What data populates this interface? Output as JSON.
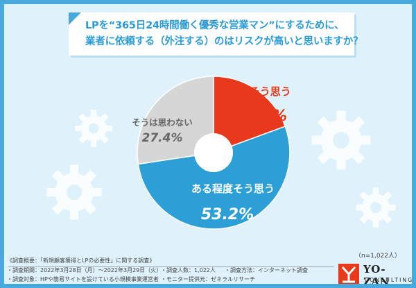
{
  "title": {
    "line1": "LPを“365日24時間働く優秀な営業マン”にするために、",
    "line2": "業者に依頼する（外注する）のはリスクが高いと思いますか？"
  },
  "chart_data": {
    "type": "pie",
    "donut": true,
    "slices": [
      {
        "label": "とてもそう思う",
        "value": 19.4,
        "display": "19.4%",
        "color": "#e8391d"
      },
      {
        "label": "ある程度そう思う",
        "value": 53.2,
        "display": "53.2%",
        "color": "#2c9fd6"
      },
      {
        "label": "そうは思わない",
        "value": 27.4,
        "display": "27.4%",
        "color": "#d6d6d6"
      }
    ]
  },
  "sample_size": "（n=1,022人）",
  "footer": {
    "overview": "《調査概要：「新規顧客獲得とLPの必要性」に関する調査》",
    "period": "・調査期間：2022年3月28日（月）〜2022年3月29日（火）",
    "count": "・調査人数：1,022人",
    "method": "・調査方法：インターネット調査",
    "target": "・調査対象：HPや簡易サイトを設けている小規模事業運営者",
    "provider": "・モニター提供元：ゼネラルリサーチ"
  },
  "logo": {
    "name": "YO-ZAN",
    "sub": "CONSULTING"
  },
  "colors": {
    "frame": "#48a9dc",
    "background": "#dff2fb",
    "title_text": "#2a9bd5"
  }
}
